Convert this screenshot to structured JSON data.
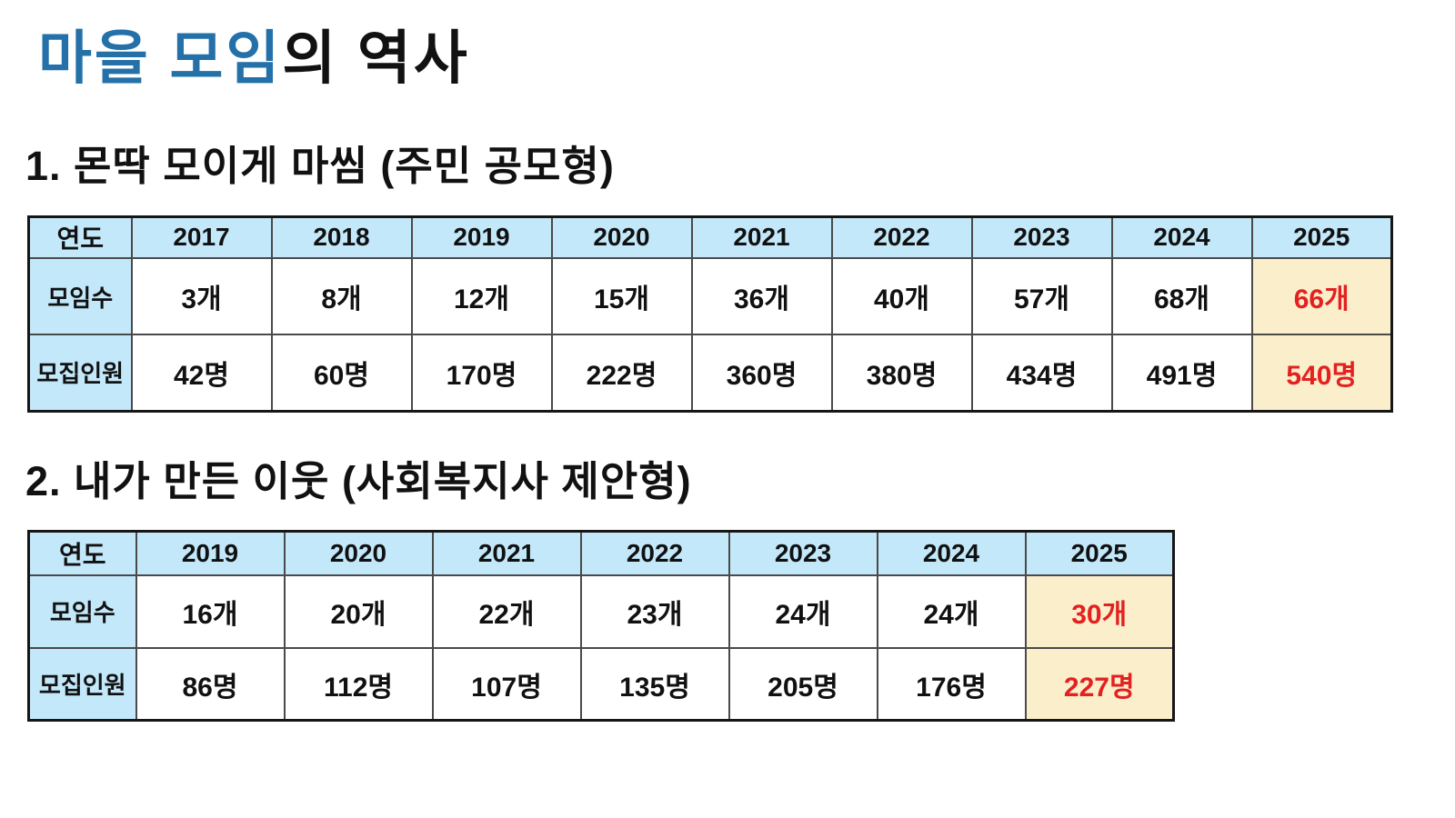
{
  "page": {
    "title": {
      "accent": "마을 모임",
      "rest": "의 역사"
    }
  },
  "colors": {
    "title_accent": "#2470a8",
    "table_header_fill": "#c3e8fa",
    "highlight_fill": "#faeecb",
    "highlight_text": "#e32120",
    "grid_line": "#4a4a4a",
    "outer_frame": "#161616"
  },
  "sections": [
    {
      "heading": "1. 몬딱 모이게 마씸 (주민 공모형)",
      "table": {
        "corner_label": "연도",
        "years": [
          "2017",
          "2018",
          "2019",
          "2020",
          "2021",
          "2022",
          "2023",
          "2024",
          "2025"
        ],
        "rows": [
          {
            "label": "모임수",
            "values": [
              "3개",
              "8개",
              "12개",
              "15개",
              "36개",
              "40개",
              "57개",
              "68개",
              "66개"
            ]
          },
          {
            "label": "모집인원",
            "values": [
              "42명",
              "60명",
              "170명",
              "222명",
              "360명",
              "380명",
              "434명",
              "491명",
              "540명"
            ]
          }
        ],
        "highlighted_year": "2025"
      }
    },
    {
      "heading": "2. 내가 만든 이웃 (사회복지사 제안형)",
      "table": {
        "corner_label": "연도",
        "years": [
          "2019",
          "2020",
          "2021",
          "2022",
          "2023",
          "2024",
          "2025"
        ],
        "rows": [
          {
            "label": "모임수",
            "values": [
              "16개",
              "20개",
              "22개",
              "23개",
              "24개",
              "24개",
              "30개"
            ]
          },
          {
            "label": "모집인원",
            "values": [
              "86명",
              "112명",
              "107명",
              "135명",
              "205명",
              "176명",
              "227명"
            ]
          }
        ],
        "highlighted_year": "2025"
      }
    }
  ]
}
